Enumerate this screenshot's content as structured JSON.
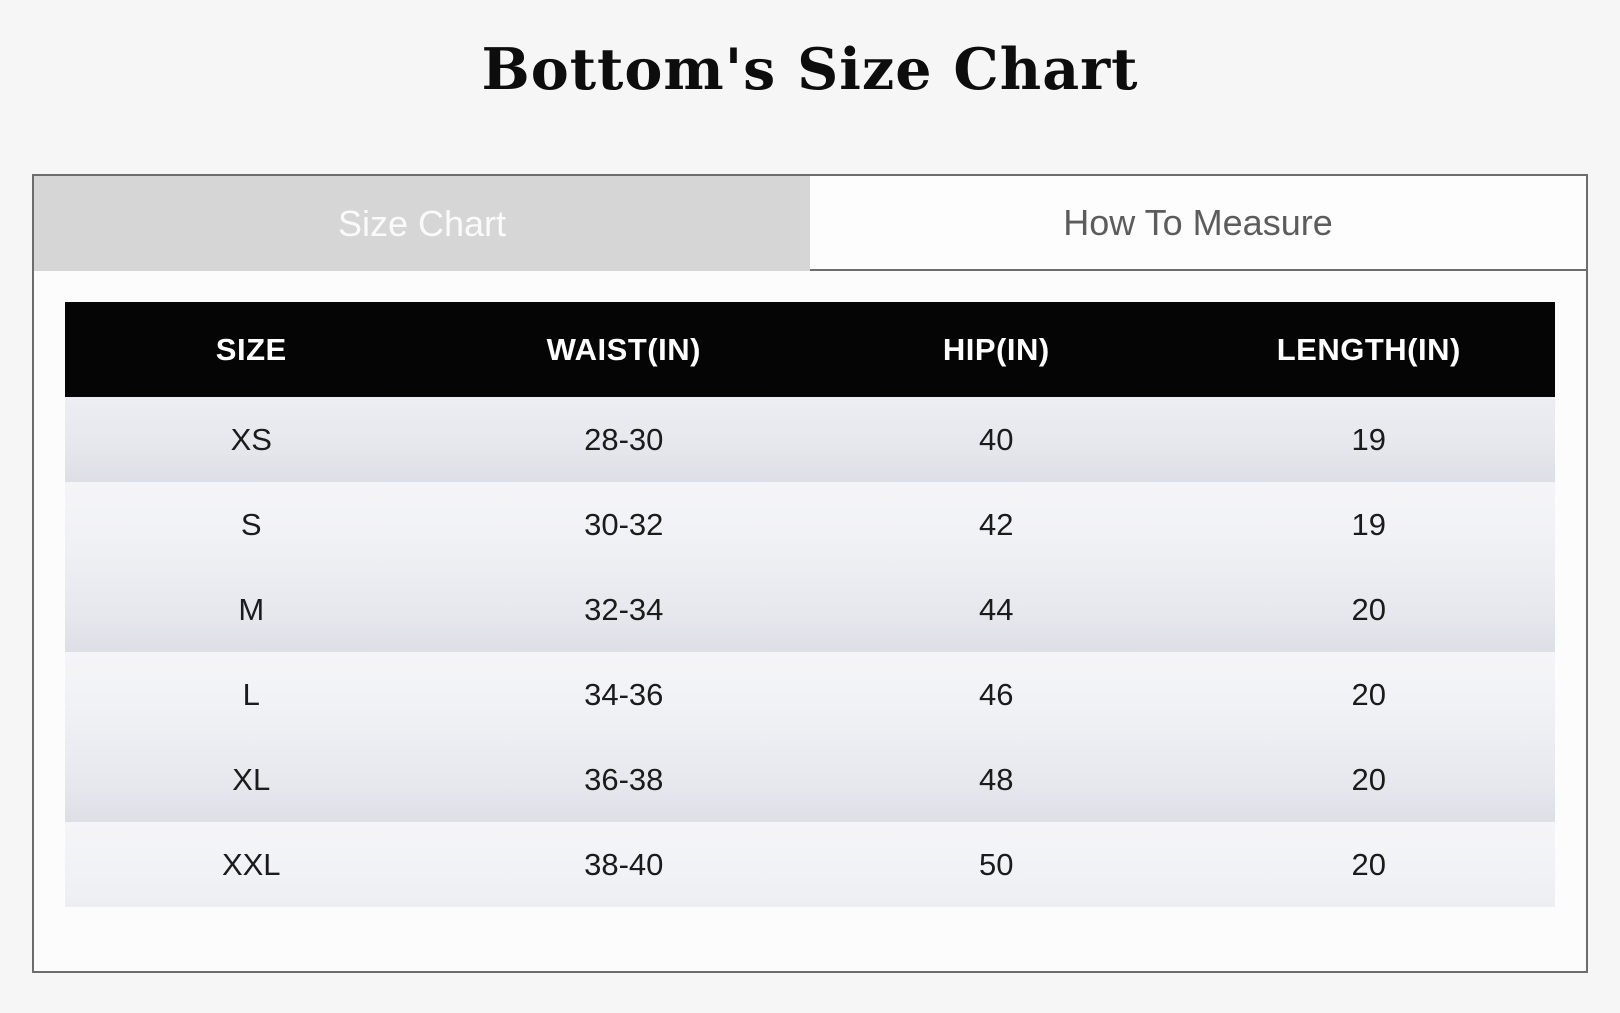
{
  "page": {
    "title": "Bottom's Size Chart"
  },
  "tabs": [
    {
      "label": "Size Chart",
      "active": true
    },
    {
      "label": "How To Measure",
      "active": false
    }
  ],
  "table": {
    "headers": [
      "SIZE",
      "WAIST(IN)",
      "HIP(IN)",
      "LENGTH(IN)"
    ],
    "rows": [
      [
        "XS",
        "28-30",
        "40",
        "19"
      ],
      [
        "S",
        "30-32",
        "42",
        "19"
      ],
      [
        "M",
        "32-34",
        "44",
        "20"
      ],
      [
        "L",
        "34-36",
        "46",
        "20"
      ],
      [
        "XL",
        "36-38",
        "48",
        "20"
      ],
      [
        "XXL",
        "38-40",
        "50",
        "20"
      ]
    ]
  },
  "colors": {
    "page_bg": "#f6f6f6",
    "panel_border": "#6d6d6d",
    "tab_active_bg": "#d6d6d6",
    "tab_active_text": "#fafafa",
    "tab_inactive_bg": "#fdfdfd",
    "tab_inactive_text": "#5c5c5c",
    "table_header_bg": "#050505",
    "table_header_text": "#ffffff",
    "row_odd_bg": "#e6e8ee",
    "row_even_bg": "#f1f2f5",
    "cell_text": "#1b1b1b"
  }
}
